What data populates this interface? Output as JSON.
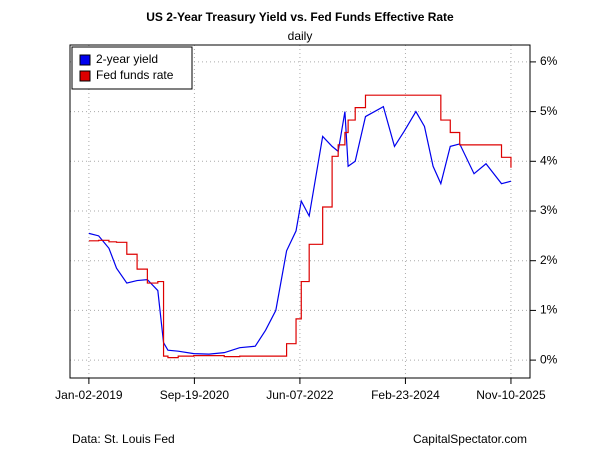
{
  "chart_data": {
    "type": "line",
    "title": "US 2-Year Treasury Yield vs. Fed Funds Effective Rate",
    "subtitle": "daily",
    "source": "Data: St. Louis Fed",
    "credit": "CapitalSpectator.com",
    "x": [
      "2019-01-02",
      "2019-03-01",
      "2019-05-01",
      "2019-06-15",
      "2019-08-15",
      "2019-10-15",
      "2019-12-15",
      "2020-02-15",
      "2020-03-20",
      "2020-04-15",
      "2020-06-15",
      "2020-09-15",
      "2020-12-15",
      "2021-03-15",
      "2021-06-15",
      "2021-09-15",
      "2021-11-15",
      "2022-01-15",
      "2022-03-20",
      "2022-05-15",
      "2022-06-15",
      "2022-08-01",
      "2022-10-20",
      "2022-12-15",
      "2023-01-20",
      "2023-03-01",
      "2023-03-20",
      "2023-05-01",
      "2023-07-01",
      "2023-10-15",
      "2023-12-20",
      "2024-02-15",
      "2024-04-25",
      "2024-06-15",
      "2024-08-05",
      "2024-09-20",
      "2024-11-15",
      "2025-01-10",
      "2025-04-05",
      "2025-06-15",
      "2025-09-15",
      "2025-11-10"
    ],
    "series": [
      {
        "name": "2-year yield",
        "color": "#0000ee",
        "step": false,
        "values": [
          2.55,
          2.5,
          2.25,
          1.85,
          1.55,
          1.6,
          1.62,
          1.4,
          0.35,
          0.2,
          0.18,
          0.13,
          0.12,
          0.15,
          0.25,
          0.28,
          0.6,
          1.0,
          2.2,
          2.6,
          3.2,
          2.9,
          4.5,
          4.3,
          4.2,
          5.0,
          3.9,
          4.0,
          4.9,
          5.1,
          4.3,
          4.6,
          5.0,
          4.7,
          3.9,
          3.55,
          4.3,
          4.35,
          3.75,
          3.95,
          3.55,
          3.6
        ]
      },
      {
        "name": "Fed funds rate",
        "color": "#dd0000",
        "step": true,
        "values": [
          2.4,
          2.41,
          2.38,
          2.37,
          2.13,
          1.83,
          1.55,
          1.58,
          0.08,
          0.05,
          0.08,
          0.09,
          0.09,
          0.07,
          0.08,
          0.08,
          0.08,
          0.08,
          0.33,
          0.83,
          1.58,
          2.33,
          3.08,
          4.1,
          4.33,
          4.58,
          4.83,
          5.08,
          5.33,
          5.33,
          5.33,
          5.33,
          5.33,
          5.33,
          5.33,
          4.83,
          4.58,
          4.33,
          4.33,
          4.33,
          4.08,
          3.87
        ]
      }
    ],
    "xlim": [
      "2018-09-12",
      "2026-03-03"
    ],
    "xticks": [
      {
        "value": "2019-01-02",
        "label": "Jan-02-2019"
      },
      {
        "value": "2020-09-19",
        "label": "Sep-19-2020"
      },
      {
        "value": "2022-06-07",
        "label": "Jun-07-2022"
      },
      {
        "value": "2024-02-23",
        "label": "Feb-23-2024"
      },
      {
        "value": "2025-11-10",
        "label": "Nov-10-2025"
      }
    ],
    "ylim": [
      -0.36,
      6.34
    ],
    "yticks": [
      {
        "value": 0,
        "label": "0%"
      },
      {
        "value": 1,
        "label": "1%"
      },
      {
        "value": 2,
        "label": "2%"
      },
      {
        "value": 3,
        "label": "3%"
      },
      {
        "value": 4,
        "label": "4%"
      },
      {
        "value": 5,
        "label": "5%"
      },
      {
        "value": 6,
        "label": "6%"
      }
    ],
    "grid": true,
    "legend": "top-left"
  }
}
